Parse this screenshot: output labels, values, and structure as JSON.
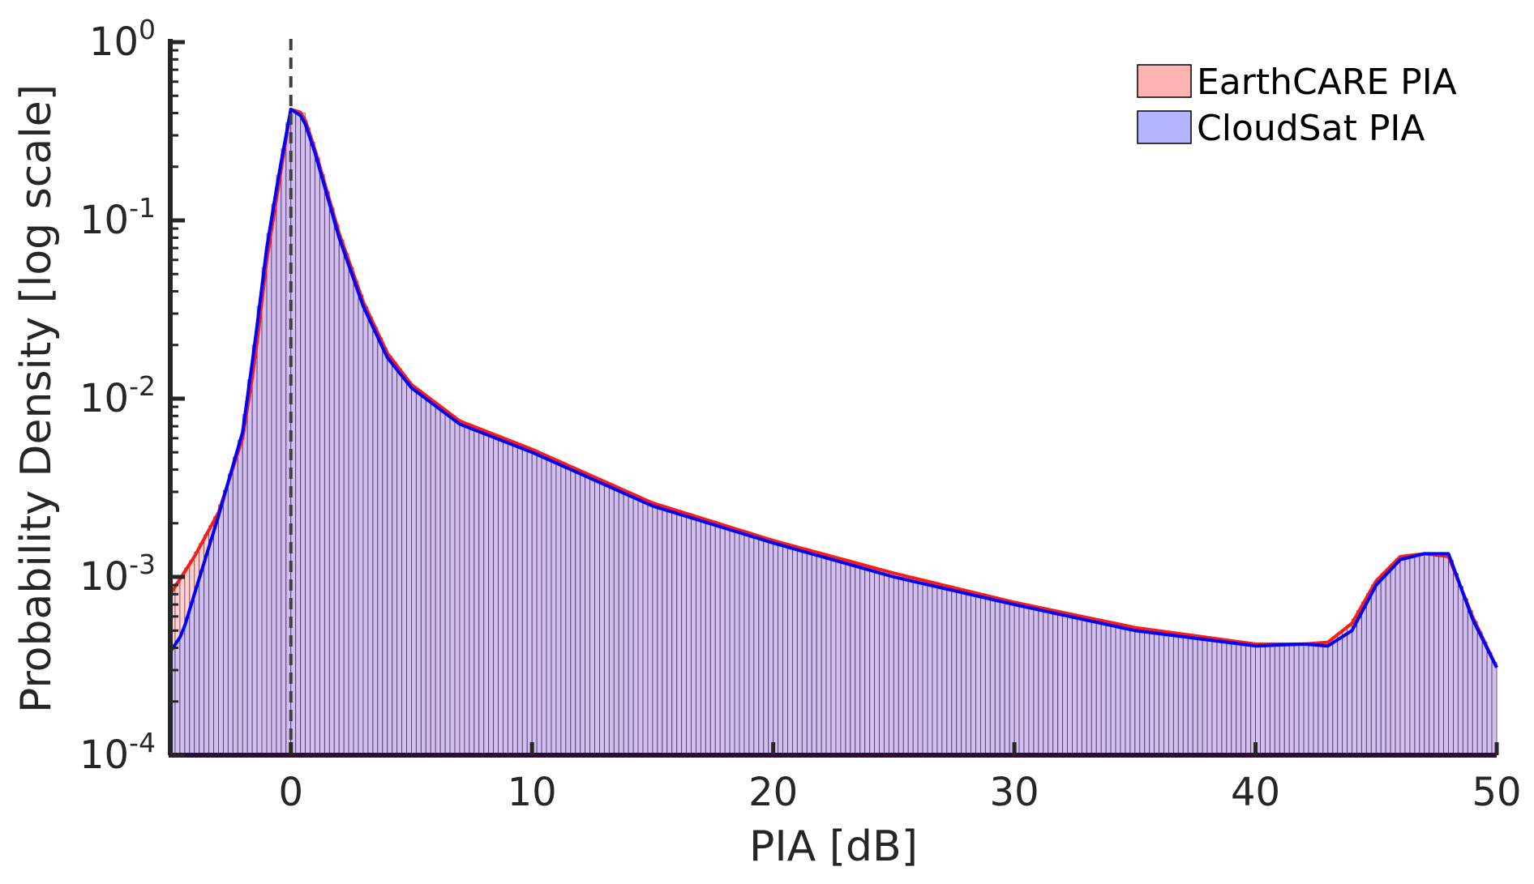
{
  "chart_data": {
    "type": "histogram",
    "xlabel": "PIA [dB]",
    "ylabel": "Probability Density [log scale]",
    "xlim": [
      -5,
      50
    ],
    "ylim": [
      0.0001,
      1
    ],
    "yscale": "log",
    "x_ticks": [
      "0",
      "10",
      "20",
      "30",
      "40",
      "50"
    ],
    "y_ticks": [
      {
        "base": "10",
        "exp": "-4"
      },
      {
        "base": "10",
        "exp": "-3"
      },
      {
        "base": "10",
        "exp": "-2"
      },
      {
        "base": "10",
        "exp": "-1"
      },
      {
        "base": "10",
        "exp": "0"
      }
    ],
    "bin_width": 0.2,
    "reference_line_x": 0,
    "legend_position": "top-right",
    "grid": false,
    "series": [
      {
        "name": "EarthCARE PIA",
        "fill_color": "#ffb3b3",
        "line_color": "#ff1a1a",
        "x": [
          -5,
          -4,
          -3,
          -2,
          -1.5,
          -1,
          -0.5,
          0,
          0.5,
          1,
          2,
          3,
          4,
          5,
          7,
          10,
          15,
          20,
          25,
          30,
          35,
          40,
          42,
          43,
          44,
          45,
          46,
          47,
          48,
          49,
          50
        ],
        "y": [
          0.0008,
          0.0013,
          0.0023,
          0.006,
          0.016,
          0.06,
          0.16,
          0.42,
          0.4,
          0.25,
          0.085,
          0.035,
          0.018,
          0.012,
          0.0075,
          0.0052,
          0.0026,
          0.0016,
          0.00105,
          0.00072,
          0.00052,
          0.00042,
          0.00042,
          0.00043,
          0.00055,
          0.00095,
          0.0013,
          0.00135,
          0.0013,
          0.0006,
          0.00031
        ]
      },
      {
        "name": "CloudSat PIA",
        "fill_color": "#b3b3ff",
        "line_color": "#0000ff",
        "x": [
          -5,
          -4.5,
          -4,
          -3,
          -2,
          -1.5,
          -1,
          -0.5,
          0,
          0.5,
          1,
          2,
          3,
          4,
          5,
          7,
          10,
          15,
          20,
          25,
          30,
          35,
          40,
          42,
          43,
          44,
          45,
          46,
          47,
          48,
          49,
          50
        ],
        "y": [
          0.00038,
          0.00048,
          0.0008,
          0.0022,
          0.0065,
          0.02,
          0.07,
          0.18,
          0.42,
          0.38,
          0.24,
          0.08,
          0.033,
          0.017,
          0.0115,
          0.0072,
          0.005,
          0.0025,
          0.00155,
          0.001,
          0.0007,
          0.0005,
          0.00041,
          0.00042,
          0.00041,
          0.0005,
          0.0009,
          0.00125,
          0.00135,
          0.00135,
          0.00058,
          0.00031
        ]
      }
    ]
  }
}
